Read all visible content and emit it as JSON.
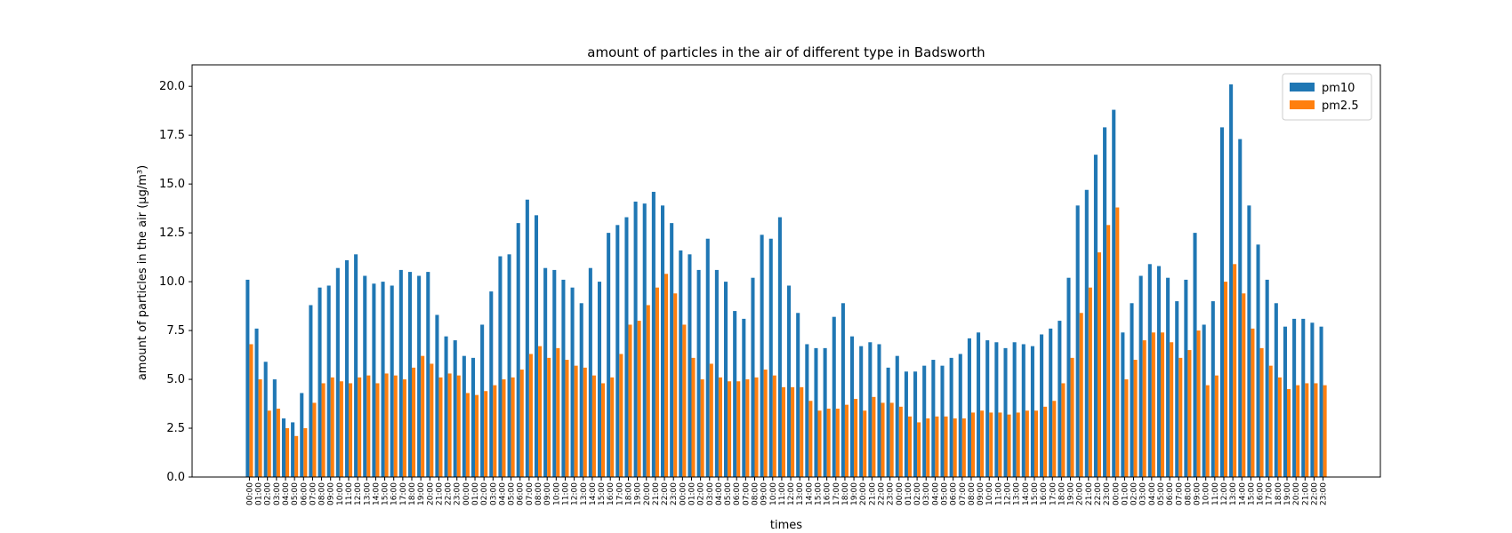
{
  "chart_data": {
    "type": "bar",
    "title": "amount of particles in the air of different type in Badsworth",
    "x_label": "times",
    "y_label": "amount of particles in the air (µg/m³)",
    "categories": [
      "00:00",
      "01:00",
      "02:00",
      "03:00",
      "04:00",
      "05:00",
      "06:00",
      "07:00",
      "08:00",
      "09:00",
      "10:00",
      "11:00",
      "12:00",
      "13:00",
      "14:00",
      "15:00",
      "16:00",
      "17:00",
      "18:00",
      "19:00",
      "20:00",
      "21:00",
      "22:00",
      "23:00",
      "00:00",
      "01:00",
      "02:00",
      "03:00",
      "04:00",
      "05:00",
      "06:00",
      "07:00",
      "08:00",
      "09:00",
      "10:00",
      "11:00",
      "12:00",
      "13:00",
      "14:00",
      "15:00",
      "16:00",
      "17:00",
      "18:00",
      "19:00",
      "20:00",
      "21:00",
      "22:00",
      "23:00",
      "00:00",
      "01:00",
      "02:00",
      "03:00",
      "04:00",
      "05:00",
      "06:00",
      "07:00",
      "08:00",
      "09:00",
      "10:00",
      "11:00",
      "12:00",
      "13:00",
      "14:00",
      "15:00",
      "16:00",
      "17:00",
      "18:00",
      "19:00",
      "20:00",
      "21:00",
      "22:00",
      "23:00",
      "00:00",
      "01:00",
      "02:00",
      "03:00",
      "04:00",
      "05:00",
      "06:00",
      "07:00",
      "08:00",
      "09:00",
      "10:00",
      "11:00",
      "12:00",
      "13:00",
      "14:00",
      "15:00",
      "16:00",
      "17:00",
      "18:00",
      "19:00",
      "20:00",
      "21:00",
      "22:00",
      "23:00",
      "00:00",
      "01:00",
      "02:00",
      "03:00",
      "04:00",
      "05:00",
      "06:00",
      "07:00",
      "08:00",
      "09:00",
      "10:00",
      "11:00",
      "12:00",
      "13:00",
      "14:00",
      "15:00",
      "16:00",
      "17:00",
      "18:00",
      "19:00",
      "20:00",
      "21:00",
      "22:00",
      "23:00"
    ],
    "series": [
      {
        "name": "pm10",
        "color": "#1f77b4",
        "values": [
          10.1,
          7.6,
          5.9,
          5.0,
          3.0,
          2.8,
          4.3,
          8.8,
          9.7,
          9.8,
          10.7,
          11.1,
          11.4,
          10.3,
          9.9,
          10.0,
          9.8,
          10.6,
          10.5,
          10.3,
          10.5,
          8.3,
          7.2,
          7.0,
          6.2,
          6.1,
          7.8,
          9.5,
          11.3,
          11.4,
          13.0,
          14.2,
          13.4,
          10.7,
          10.6,
          10.1,
          9.7,
          8.9,
          10.7,
          10.0,
          12.5,
          12.9,
          13.3,
          14.1,
          14.0,
          14.6,
          13.9,
          13.0,
          11.6,
          11.4,
          10.6,
          12.2,
          10.6,
          10.0,
          8.5,
          8.1,
          10.2,
          12.4,
          12.2,
          13.3,
          9.8,
          8.4,
          6.8,
          6.6,
          6.6,
          8.2,
          8.9,
          7.2,
          6.7,
          6.9,
          6.8,
          5.6,
          6.2,
          5.4,
          5.4,
          5.7,
          6.0,
          5.7,
          6.1,
          6.3,
          7.1,
          7.4,
          7.0,
          6.9,
          6.6,
          6.9,
          6.8,
          6.7,
          7.3,
          7.6,
          8.0,
          10.2,
          13.9,
          14.7,
          16.5,
          17.9,
          18.8,
          7.4,
          8.9,
          10.3,
          10.9,
          10.8,
          10.2,
          9.0,
          10.1,
          12.5,
          7.8,
          9.0,
          17.9,
          20.1,
          17.3,
          13.9,
          11.9,
          10.1,
          8.9,
          7.7,
          8.1,
          8.1,
          7.9,
          7.7
        ]
      },
      {
        "name": "pm2.5",
        "color": "#ff7f0e",
        "values": [
          6.8,
          5.0,
          3.4,
          3.5,
          2.5,
          2.1,
          2.5,
          3.8,
          4.8,
          5.1,
          4.9,
          4.8,
          5.1,
          5.2,
          4.8,
          5.3,
          5.2,
          5.0,
          5.6,
          6.2,
          5.8,
          5.1,
          5.3,
          5.2,
          4.3,
          4.2,
          4.4,
          4.7,
          5.0,
          5.1,
          5.5,
          6.3,
          6.7,
          6.1,
          6.6,
          6.0,
          5.7,
          5.6,
          5.2,
          4.8,
          5.1,
          6.3,
          7.8,
          8.0,
          8.8,
          9.7,
          10.4,
          9.4,
          7.8,
          6.1,
          5.0,
          5.8,
          5.1,
          4.9,
          4.9,
          5.0,
          5.1,
          5.5,
          5.2,
          4.6,
          4.6,
          4.6,
          3.9,
          3.4,
          3.5,
          3.5,
          3.7,
          4.0,
          3.4,
          4.1,
          3.8,
          3.8,
          3.6,
          3.1,
          2.8,
          3.0,
          3.1,
          3.1,
          3.0,
          3.0,
          3.3,
          3.4,
          3.3,
          3.3,
          3.2,
          3.3,
          3.4,
          3.4,
          3.6,
          3.9,
          4.8,
          6.1,
          8.4,
          9.7,
          11.5,
          12.9,
          13.8,
          5.0,
          6.0,
          7.0,
          7.4,
          7.4,
          6.9,
          6.1,
          6.5,
          7.5,
          4.7,
          5.2,
          10.0,
          10.9,
          9.4,
          7.6,
          6.6,
          5.7,
          5.1,
          4.5,
          4.7,
          4.8,
          4.8,
          4.7
        ]
      }
    ],
    "ylim": [
      0,
      21.1
    ],
    "yticks": [
      {
        "value": 0,
        "label": "0.0"
      },
      2.5,
      {
        "value": 5,
        "label": "5.0"
      },
      7.5,
      {
        "value": 10,
        "label": "10.0"
      },
      12.5,
      {
        "value": 15,
        "label": "15.0"
      },
      17.5,
      {
        "value": 20,
        "label": "20.0"
      }
    ],
    "legend": "upper right"
  }
}
